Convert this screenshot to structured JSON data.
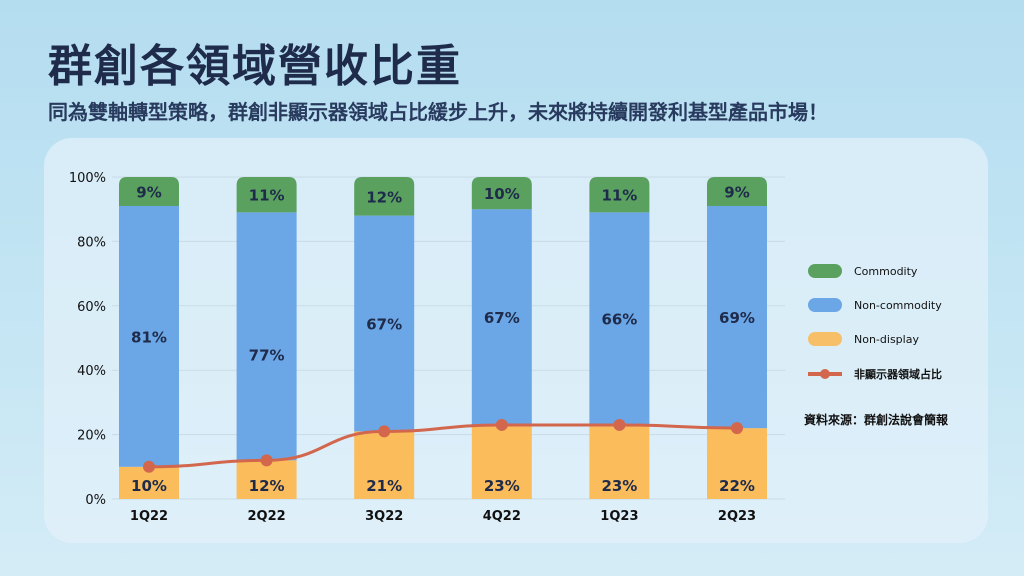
{
  "title": "群創各領域營收比重",
  "subtitle": "同為雙軸轉型策略，群創非顯示器領域占比緩步上升，未來將持續開發利基型產品市場！",
  "source": "資料來源：群創法說會簡報",
  "chart_data": {
    "type": "bar",
    "stacked": true,
    "categories": [
      "1Q22",
      "2Q22",
      "3Q22",
      "4Q22",
      "1Q23",
      "2Q23"
    ],
    "series": [
      {
        "name": "Non-display",
        "values": [
          10,
          12,
          21,
          23,
          23,
          22
        ],
        "color": "#fbbd5c"
      },
      {
        "name": "Non-commodity",
        "values": [
          81,
          77,
          67,
          67,
          66,
          69
        ],
        "color": "#6ba6e6"
      },
      {
        "name": "Commodity",
        "values": [
          9,
          11,
          12,
          10,
          11,
          9
        ],
        "color": "#5aa160"
      }
    ],
    "line": {
      "name": "非顯示器領域占比",
      "values": [
        10,
        12,
        21,
        23,
        23,
        22
      ],
      "color": "#d2674e"
    },
    "yticks": [
      "0%",
      "20%",
      "40%",
      "60%",
      "80%",
      "100%"
    ],
    "ylim": [
      0,
      100
    ],
    "grid": true,
    "legend": "right"
  }
}
